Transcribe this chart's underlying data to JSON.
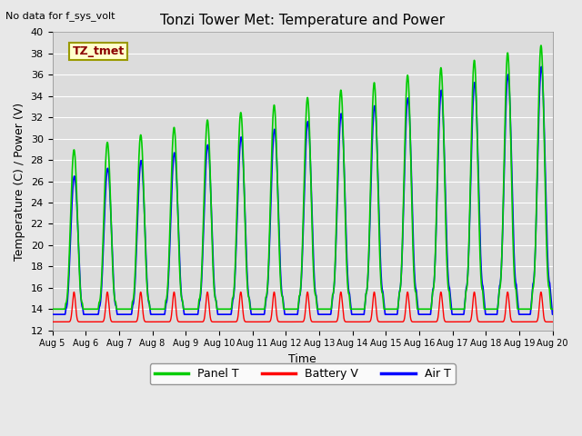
{
  "title": "Tonzi Tower Met: Temperature and Power",
  "xlabel": "Time",
  "ylabel": "Temperature (C) / Power (V)",
  "top_left_text": "No data for f_sys_volt",
  "legend_box_text": "TZ_tmet",
  "ylim": [
    12,
    40
  ],
  "yticks": [
    12,
    14,
    16,
    18,
    20,
    22,
    24,
    26,
    28,
    30,
    32,
    34,
    36,
    38,
    40
  ],
  "xtick_labels": [
    "Aug 5",
    "Aug 6",
    "Aug 7",
    "Aug 8",
    "Aug 9",
    "Aug 10",
    "Aug 11",
    "Aug 12",
    "Aug 13",
    "Aug 14",
    "Aug 15",
    "Aug 16",
    "Aug 17",
    "Aug 18",
    "Aug 19",
    "Aug 20"
  ],
  "panel_color": "#00CC00",
  "battery_color": "#FF0000",
  "air_color": "#0000FF",
  "bg_color": "#E8E8E8",
  "plot_bg_color": "#DCDCDC",
  "legend_entries": [
    "Panel T",
    "Battery V",
    "Air T"
  ]
}
